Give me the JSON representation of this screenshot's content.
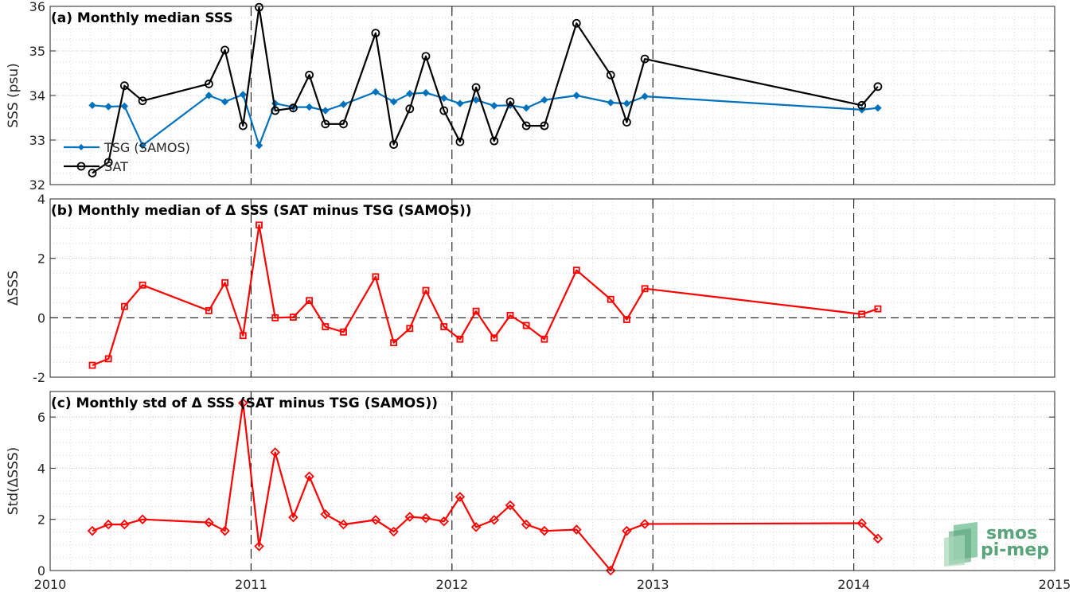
{
  "chart_data": [
    {
      "id": "a",
      "type": "line",
      "title": "(a) Monthly median SSS",
      "ylabel": "SSS (psu)",
      "ylim": [
        32,
        36
      ],
      "yticks": [
        32,
        33,
        34,
        35,
        36
      ],
      "xlim": [
        2010,
        2015
      ],
      "xticks": [
        2010,
        2011,
        2012,
        2013,
        2014,
        2015
      ],
      "grid": true,
      "minor_grid": true,
      "year_lines": [
        2011,
        2012,
        2013,
        2014
      ],
      "legend_position": "bottom-left",
      "series": [
        {
          "name": "TSG (SAMOS)",
          "color": "#0072bd",
          "marker": "diamond-filled",
          "x": [
            2010.21,
            2010.29,
            2010.37,
            2010.46,
            2010.79,
            2010.87,
            2010.96,
            2011.04,
            2011.12,
            2011.21,
            2011.29,
            2011.37,
            2011.46,
            2011.62,
            2011.71,
            2011.79,
            2011.87,
            2011.96,
            2012.04,
            2012.12,
            2012.21,
            2012.29,
            2012.37,
            2012.46,
            2012.62,
            2012.79,
            2012.87,
            2012.96,
            2014.04,
            2014.12
          ],
          "values": [
            33.78,
            33.75,
            33.76,
            32.88,
            34.0,
            33.86,
            34.02,
            32.88,
            33.82,
            33.74,
            33.74,
            33.66,
            33.8,
            34.08,
            33.86,
            34.04,
            34.06,
            33.94,
            33.82,
            33.9,
            33.77,
            33.78,
            33.72,
            33.9,
            34.0,
            33.84,
            33.82,
            33.98,
            33.68,
            33.72
          ]
        },
        {
          "name": "SAT",
          "color": "#000000",
          "marker": "circle-open",
          "x": [
            2010.21,
            2010.29,
            2010.37,
            2010.46,
            2010.79,
            2010.87,
            2010.96,
            2011.04,
            2011.12,
            2011.21,
            2011.29,
            2011.37,
            2011.46,
            2011.62,
            2011.71,
            2011.79,
            2011.87,
            2011.96,
            2012.04,
            2012.12,
            2012.21,
            2012.29,
            2012.37,
            2012.46,
            2012.62,
            2012.79,
            2012.87,
            2012.96,
            2014.04,
            2014.12
          ],
          "values": [
            32.26,
            32.5,
            34.22,
            33.88,
            34.26,
            35.02,
            33.32,
            35.98,
            33.66,
            33.72,
            34.46,
            33.36,
            33.36,
            35.4,
            32.9,
            33.7,
            34.88,
            33.66,
            32.96,
            34.18,
            32.98,
            33.86,
            33.32,
            33.32,
            35.62,
            34.46,
            33.4,
            34.82,
            33.78,
            34.2
          ]
        }
      ]
    },
    {
      "id": "b",
      "type": "line",
      "title": "(b) Monthly median of Δ SSS (SAT minus TSG (SAMOS))",
      "ylabel": "ΔSSS",
      "ylim": [
        -2,
        4
      ],
      "yticks": [
        -2,
        0,
        2,
        4
      ],
      "xlim": [
        2010,
        2015
      ],
      "xticks": [
        2010,
        2011,
        2012,
        2013,
        2014,
        2015
      ],
      "grid": true,
      "minor_grid": true,
      "year_lines": [
        2011,
        2012,
        2013,
        2014
      ],
      "zero_line": true,
      "series": [
        {
          "color": "#ff0000",
          "marker": "square-open",
          "x": [
            2010.21,
            2010.29,
            2010.37,
            2010.46,
            2010.79,
            2010.87,
            2010.96,
            2011.04,
            2011.12,
            2011.21,
            2011.29,
            2011.37,
            2011.46,
            2011.62,
            2011.71,
            2011.79,
            2011.87,
            2011.96,
            2012.04,
            2012.12,
            2012.21,
            2012.29,
            2012.37,
            2012.46,
            2012.62,
            2012.79,
            2012.87,
            2012.96,
            2014.04,
            2014.12
          ],
          "values": [
            -1.6,
            -1.38,
            0.38,
            1.1,
            0.24,
            1.18,
            -0.6,
            3.12,
            0.0,
            0.02,
            0.58,
            -0.3,
            -0.48,
            1.38,
            -0.84,
            -0.36,
            0.92,
            -0.3,
            -0.72,
            0.22,
            -0.68,
            0.08,
            -0.26,
            -0.72,
            1.6,
            0.62,
            -0.06,
            0.98,
            0.12,
            0.3
          ]
        }
      ]
    },
    {
      "id": "c",
      "type": "line",
      "title": "(c) Monthly std of Δ SSS (SAT minus TSG (SAMOS))",
      "ylabel": "Std(ΔSSS)",
      "ylim": [
        0,
        7
      ],
      "yticks": [
        0,
        2,
        4,
        6
      ],
      "xlim": [
        2010,
        2015
      ],
      "xticks": [
        2010,
        2011,
        2012,
        2013,
        2014,
        2015
      ],
      "xtick_labels": [
        "2010",
        "2011",
        "2012",
        "2013",
        "2014",
        "2015"
      ],
      "grid": true,
      "minor_grid": true,
      "year_lines": [
        2011,
        2012,
        2013,
        2014
      ],
      "series": [
        {
          "color": "#ff0000",
          "marker": "diamond-open",
          "x": [
            2010.21,
            2010.29,
            2010.37,
            2010.46,
            2010.79,
            2010.87,
            2010.96,
            2011.04,
            2011.12,
            2011.21,
            2011.29,
            2011.37,
            2011.46,
            2011.62,
            2011.71,
            2011.79,
            2011.87,
            2011.96,
            2012.04,
            2012.12,
            2012.21,
            2012.29,
            2012.37,
            2012.46,
            2012.62,
            2012.79,
            2012.87,
            2012.96,
            2014.04,
            2014.12
          ],
          "values": [
            1.55,
            1.8,
            1.8,
            2.0,
            1.88,
            1.55,
            6.55,
            0.95,
            4.62,
            2.08,
            3.68,
            2.2,
            1.8,
            1.98,
            1.52,
            2.1,
            2.05,
            1.92,
            2.88,
            1.7,
            1.98,
            2.55,
            1.8,
            1.55,
            1.6,
            0.0,
            1.55,
            1.82,
            1.85,
            1.25
          ]
        }
      ]
    }
  ],
  "logo": {
    "line1": "smos",
    "line2": "pi-mep",
    "color": "#5aa47c"
  }
}
